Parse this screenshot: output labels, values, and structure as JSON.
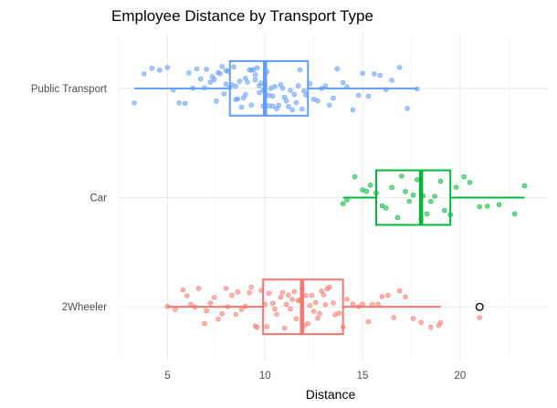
{
  "chart_data": {
    "type": "box",
    "orientation": "horizontal",
    "title": "Employee Distance by Transport Type",
    "xlabel": "Distance",
    "ylabel": "",
    "xlim": [
      2.5,
      24.5
    ],
    "x_ticks": [
      5,
      10,
      15,
      20
    ],
    "categories": [
      "2Wheeler",
      "Car",
      "Public Transport"
    ],
    "grid": true,
    "legend": "none",
    "boxes": [
      {
        "category": "2Wheeler",
        "color": "#F8766D",
        "min": 5.0,
        "q1": 9.9,
        "median": 11.9,
        "q3": 14.0,
        "max": 19.0,
        "outliers": [
          21.0
        ]
      },
      {
        "category": "Car",
        "color": "#00BA38",
        "min": 14.0,
        "q1": 15.7,
        "median": 18.0,
        "q3": 19.5,
        "max": 23.3,
        "outliers": []
      },
      {
        "category": "Public Transport",
        "color": "#619CFF",
        "min": 3.3,
        "q1": 8.2,
        "median": 10.0,
        "q3": 12.2,
        "max": 17.8,
        "outliers": []
      }
    ],
    "jitter_points": {
      "2Wheeler": [
        5.0,
        5.4,
        5.8,
        6.0,
        6.2,
        6.4,
        6.6,
        6.9,
        7.0,
        7.2,
        7.4,
        7.6,
        7.8,
        8.0,
        8.1,
        8.3,
        8.5,
        8.6,
        8.8,
        9.0,
        9.2,
        9.3,
        9.5,
        9.6,
        9.8,
        10.0,
        10.1,
        10.2,
        10.4,
        10.5,
        10.6,
        10.8,
        10.9,
        11.0,
        11.1,
        11.2,
        11.3,
        11.4,
        11.5,
        11.6,
        11.7,
        11.8,
        11.9,
        12.0,
        12.1,
        12.2,
        12.3,
        12.4,
        12.5,
        12.6,
        12.7,
        12.8,
        12.9,
        13.0,
        13.1,
        13.2,
        13.3,
        13.5,
        13.6,
        13.8,
        14.0,
        14.2,
        14.5,
        14.8,
        15.0,
        15.3,
        15.5,
        15.8,
        16.0,
        16.3,
        16.6,
        16.9,
        17.2,
        17.6,
        18.0,
        18.5,
        18.9,
        19.0,
        21.0
      ],
      "Car": [
        14.0,
        14.2,
        14.6,
        15.0,
        15.2,
        15.4,
        15.7,
        16.0,
        16.2,
        16.5,
        16.8,
        17.0,
        17.2,
        17.4,
        17.6,
        17.8,
        18.0,
        18.1,
        18.3,
        18.5,
        18.7,
        19.0,
        19.2,
        19.5,
        19.8,
        20.2,
        20.5,
        21.0,
        21.4,
        22.0,
        22.8,
        23.3
      ],
      "Public Transport": [
        3.3,
        3.8,
        4.2,
        4.6,
        5.0,
        5.3,
        5.6,
        5.9,
        6.1,
        6.3,
        6.5,
        6.7,
        6.9,
        7.0,
        7.2,
        7.3,
        7.4,
        7.5,
        7.6,
        7.7,
        7.8,
        7.9,
        8.0,
        8.0,
        8.1,
        8.2,
        8.3,
        8.4,
        8.5,
        8.5,
        8.6,
        8.7,
        8.8,
        8.9,
        9.0,
        9.0,
        9.1,
        9.2,
        9.3,
        9.3,
        9.4,
        9.5,
        9.5,
        9.6,
        9.7,
        9.7,
        9.8,
        9.9,
        9.9,
        10.0,
        10.0,
        10.1,
        10.2,
        10.2,
        10.3,
        10.4,
        10.4,
        10.5,
        10.6,
        10.7,
        10.8,
        10.9,
        11.0,
        11.1,
        11.2,
        11.3,
        11.4,
        11.5,
        11.6,
        11.7,
        11.8,
        11.9,
        12.0,
        12.1,
        12.3,
        12.5,
        12.7,
        12.9,
        13.1,
        13.3,
        13.5,
        13.7,
        14.0,
        14.2,
        14.5,
        14.8,
        15.0,
        15.3,
        15.6,
        15.9,
        16.2,
        16.5,
        16.9,
        17.3,
        17.8
      ]
    }
  }
}
